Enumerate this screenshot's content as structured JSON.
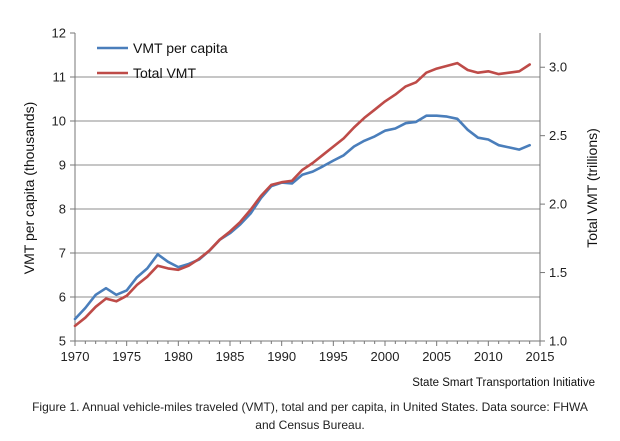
{
  "chart_data": {
    "type": "line",
    "x": [
      1970,
      1971,
      1972,
      1973,
      1974,
      1975,
      1976,
      1977,
      1978,
      1979,
      1980,
      1981,
      1982,
      1983,
      1984,
      1985,
      1986,
      1987,
      1988,
      1989,
      1990,
      1991,
      1992,
      1993,
      1994,
      1995,
      1996,
      1997,
      1998,
      1999,
      2000,
      2001,
      2002,
      2003,
      2004,
      2005,
      2006,
      2007,
      2008,
      2009,
      2010,
      2011,
      2012,
      2013,
      2014
    ],
    "series": [
      {
        "name": "VMT per capita",
        "axis": "left",
        "color": "#4a7ebb",
        "values": [
          5.5,
          5.75,
          6.05,
          6.2,
          6.05,
          6.15,
          6.45,
          6.65,
          6.97,
          6.8,
          6.68,
          6.75,
          6.85,
          7.05,
          7.3,
          7.45,
          7.65,
          7.9,
          8.25,
          8.52,
          8.6,
          8.58,
          8.78,
          8.85,
          8.97,
          9.1,
          9.22,
          9.42,
          9.55,
          9.65,
          9.78,
          9.83,
          9.95,
          9.98,
          10.12,
          10.12,
          10.1,
          10.05,
          9.8,
          9.62,
          9.58,
          9.45,
          9.4,
          9.35,
          9.45
        ]
      },
      {
        "name": "Total VMT",
        "axis": "right",
        "color": "#be4b48",
        "values": [
          1.11,
          1.17,
          1.25,
          1.31,
          1.29,
          1.33,
          1.41,
          1.47,
          1.55,
          1.53,
          1.52,
          1.55,
          1.6,
          1.66,
          1.74,
          1.8,
          1.87,
          1.96,
          2.06,
          2.14,
          2.16,
          2.17,
          2.25,
          2.3,
          2.36,
          2.42,
          2.48,
          2.56,
          2.63,
          2.69,
          2.75,
          2.8,
          2.86,
          2.89,
          2.96,
          2.99,
          3.01,
          3.03,
          2.98,
          2.96,
          2.97,
          2.95,
          2.96,
          2.97,
          3.02
        ]
      }
    ],
    "xlabel": "",
    "ylabel": "VMT per capita (thousands)",
    "y2label": "Total VMT (trillions)",
    "xlim": [
      1970,
      2015
    ],
    "ylim": [
      5,
      12
    ],
    "y2lim": [
      1.0,
      3.25
    ],
    "xticks": [
      "1970",
      "1975",
      "1980",
      "1985",
      "1990",
      "1995",
      "2000",
      "2005",
      "2010",
      "2015"
    ],
    "yticks": [
      "5",
      "6",
      "7",
      "8",
      "9",
      "10",
      "11",
      "12"
    ],
    "y2ticks": [
      "1.0",
      "1.5",
      "2.0",
      "2.5",
      "3.0"
    ],
    "grid": "horizontal",
    "legend": "top-left"
  },
  "credit": "State Smart Transportation Initiative",
  "caption": "Figure 1. Annual vehicle-miles traveled (VMT), total and per capita, in United States. Data source: FHWA and Census Bureau."
}
